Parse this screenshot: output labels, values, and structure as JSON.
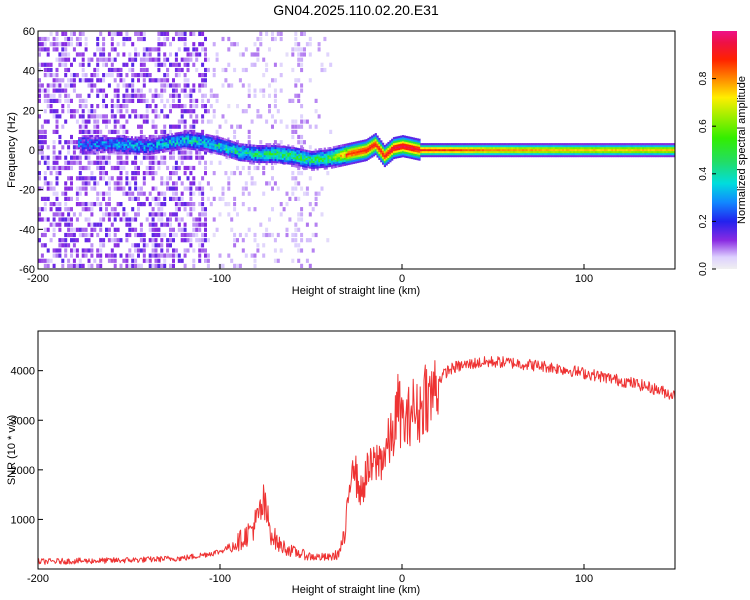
{
  "chart_data": [
    {
      "type": "heatmap",
      "title": "GN04.2025.110.02.20.E31",
      "xlabel": "Height of straight line (km)",
      "ylabel": "Frequency (Hz)",
      "xlim": [
        -200,
        150
      ],
      "ylim": [
        -60,
        60
      ],
      "xticks": [
        "-200",
        "-100",
        "0",
        "100"
      ],
      "yticks": [
        "-60",
        "-40",
        "-20",
        "0",
        "20",
        "40",
        "60"
      ],
      "colorbar": {
        "label": "Normalized spectral amplitude",
        "range": [
          0,
          1
        ],
        "ticks": [
          "0.0",
          "0.2",
          "0.4",
          "0.6",
          "0.8"
        ]
      },
      "ridge": {
        "x": [
          -175,
          -160,
          -140,
          -120,
          -110,
          -100,
          -90,
          -80,
          -70,
          -60,
          -50,
          -40,
          -30,
          -20,
          -15,
          -10,
          -5,
          0,
          5,
          10,
          50,
          100,
          150
        ],
        "freq": [
          3,
          3,
          2,
          5,
          4,
          2,
          -1,
          -2,
          -2,
          -3,
          -5,
          -4,
          -2,
          0,
          3,
          -3,
          1,
          2,
          1,
          0,
          0,
          0,
          0
        ],
        "amplitude": [
          0.25,
          0.3,
          0.3,
          0.35,
          0.35,
          0.35,
          0.4,
          0.4,
          0.45,
          0.45,
          0.45,
          0.5,
          0.85,
          0.9,
          0.9,
          0.9,
          0.95,
          0.95,
          0.95,
          0.9,
          0.8,
          0.75,
          0.75
        ]
      }
    },
    {
      "type": "line",
      "xlabel": "Height of straight line (km)",
      "ylabel": "SNR (10 * v/v)",
      "xlim": [
        -200,
        150
      ],
      "ylim": [
        0,
        4800
      ],
      "xticks": [
        "-200",
        "-100",
        "0",
        "100"
      ],
      "yticks": [
        "1000",
        "2000",
        "3000",
        "4000"
      ],
      "color": "#ee3333",
      "series": [
        {
          "name": "SNR",
          "x": [
            -200,
            -180,
            -160,
            -140,
            -120,
            -110,
            -100,
            -90,
            -85,
            -80,
            -76,
            -72,
            -68,
            -60,
            -50,
            -40,
            -35,
            -31,
            -29,
            -27,
            -25,
            -22,
            -20,
            -15,
            -10,
            -5,
            -2,
            0,
            3,
            5,
            8,
            10,
            13,
            15,
            20,
            25,
            30,
            40,
            50,
            60,
            70,
            80,
            90,
            100,
            110,
            120,
            130,
            140,
            150
          ],
          "y": [
            150,
            160,
            170,
            190,
            220,
            280,
            350,
            550,
            700,
            950,
            1300,
            750,
            500,
            350,
            250,
            230,
            300,
            700,
            1600,
            2400,
            1800,
            1500,
            1900,
            2100,
            2300,
            2700,
            3300,
            3000,
            2900,
            3300,
            3100,
            3200,
            3600,
            3400,
            3800,
            4000,
            4080,
            4150,
            4180,
            4160,
            4120,
            4080,
            4020,
            3950,
            3880,
            3800,
            3720,
            3620,
            3500
          ]
        }
      ]
    }
  ]
}
